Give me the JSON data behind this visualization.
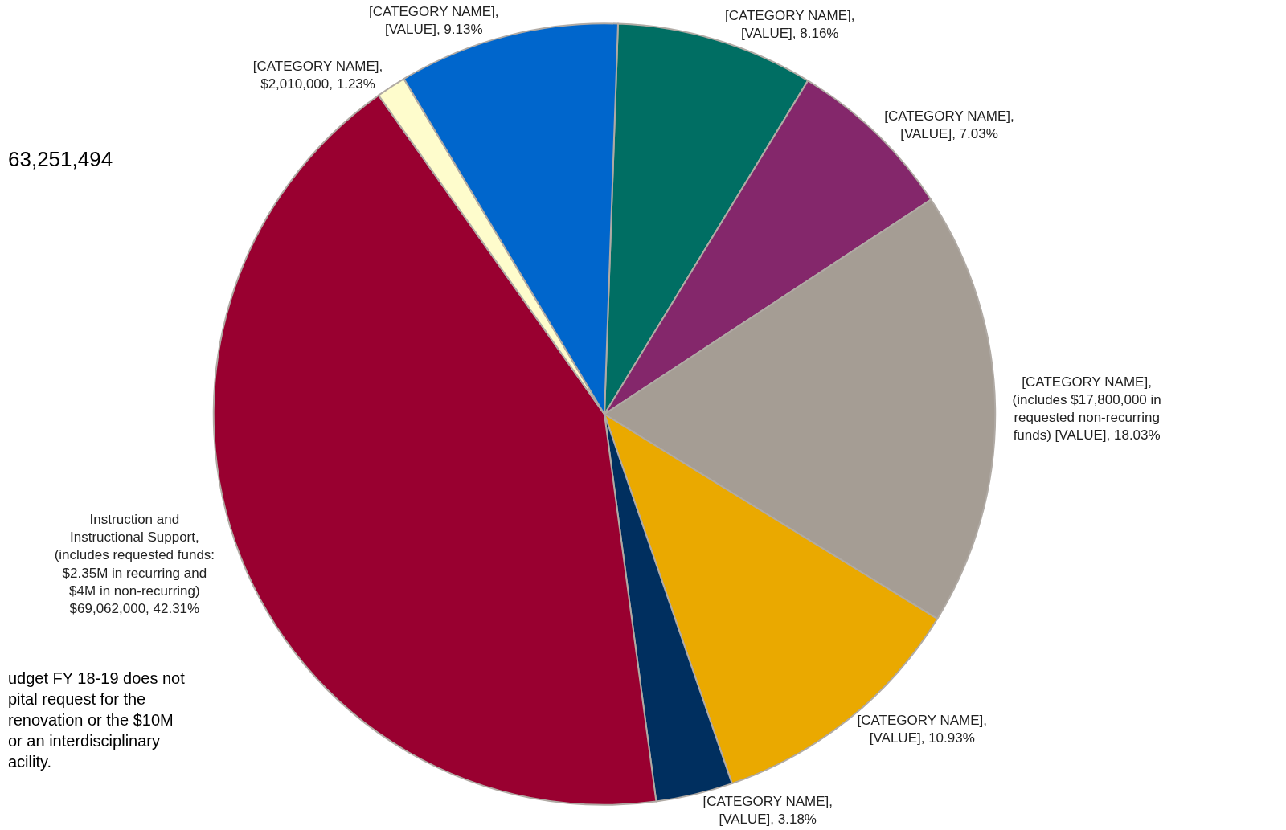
{
  "chart_data": {
    "type": "pie",
    "categories": [
      "[CATEGORY NAME]",
      "[CATEGORY NAME]",
      "[CATEGORY NAME]",
      "[CATEGORY NAME]",
      "[CATEGORY NAME]",
      "Instruction and Instructional Support",
      "[CATEGORY NAME]",
      "[CATEGORY NAME]"
    ],
    "values": [
      8.16,
      7.03,
      18.03,
      10.93,
      3.18,
      42.31,
      1.23,
      9.13
    ],
    "value_labels": [
      ", [VALUE], 8.16%",
      ", [VALUE], 7.03%",
      ", (includes $17,800,000 in requested non-recurring funds) [VALUE], 18.03%",
      ", [VALUE], 10.93%",
      ", [VALUE], 3.18%",
      ",(includes requested funds: $2.35M in recurring and $4M in non-recurring) $69,062,000, 42.31%",
      ", $2,010,000, 1.23%",
      ", [VALUE], 9.13%"
    ],
    "colors": [
      "#006e63",
      "#84276b",
      "#a59d94",
      "#eaa900",
      "#002f5f",
      "#990030",
      "#fefccc",
      "#0066cc"
    ],
    "annotations": [
      "63,251,494",
      "udget FY 18-19 does not pital request for the renovation or the $10M or an interdisciplinary acility."
    ],
    "legend": false
  }
}
